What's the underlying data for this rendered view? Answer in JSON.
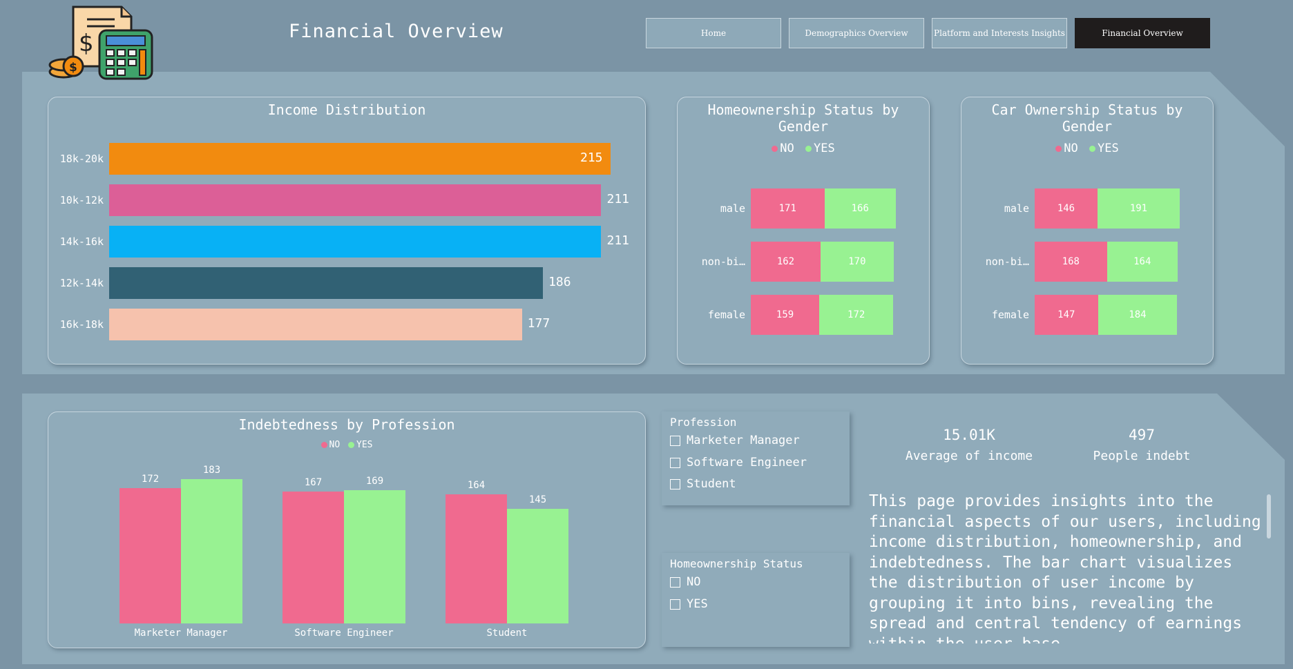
{
  "page": {
    "title": "Financial Overview"
  },
  "nav": [
    {
      "label": "Home",
      "active": false
    },
    {
      "label": "Demographics Overview",
      "active": false
    },
    {
      "label": "Platform and Interests Insights",
      "active": false
    },
    {
      "label": "Financial Overview",
      "active": true
    }
  ],
  "colors": {
    "no": "#f06a8f",
    "yes": "#98f292"
  },
  "income": {
    "title": "Income Distribution",
    "chart_data": {
      "type": "bar",
      "orientation": "horizontal",
      "categories": [
        "18k-20k",
        "10k-12k",
        "14k-16k",
        "12k-14k",
        "16k-18k"
      ],
      "values": [
        215,
        211,
        211,
        186,
        177
      ],
      "colors": [
        "#f28b0f",
        "#dc5f97",
        "#08b1f5",
        "#316174",
        "#f6c2ad"
      ],
      "title": "Income Distribution"
    }
  },
  "home": {
    "title": "Homeownership Status by Gender",
    "legend": [
      "NO",
      "YES"
    ],
    "chart_data": {
      "type": "bar",
      "orientation": "horizontal-stacked",
      "categories": [
        "male",
        "non-bi…",
        "female"
      ],
      "series": [
        {
          "name": "NO",
          "values": [
            171,
            162,
            159
          ]
        },
        {
          "name": "YES",
          "values": [
            166,
            170,
            172
          ]
        }
      ],
      "title": "Homeownership Status by Gender"
    }
  },
  "car": {
    "title": "Car Ownership Status by Gender",
    "legend": [
      "NO",
      "YES"
    ],
    "chart_data": {
      "type": "bar",
      "orientation": "horizontal-stacked",
      "categories": [
        "male",
        "non-bi…",
        "female"
      ],
      "series": [
        {
          "name": "NO",
          "values": [
            146,
            168,
            147
          ]
        },
        {
          "name": "YES",
          "values": [
            191,
            164,
            184
          ]
        }
      ],
      "title": "Car Ownership Status by Gender"
    }
  },
  "debt": {
    "title": "Indebtedness by Profession",
    "legend": [
      "NO",
      "YES"
    ],
    "chart_data": {
      "type": "bar",
      "orientation": "vertical-grouped",
      "categories": [
        "Marketer Manager",
        "Software Engineer",
        "Student"
      ],
      "series": [
        {
          "name": "NO",
          "values": [
            172,
            167,
            164
          ]
        },
        {
          "name": "YES",
          "values": [
            183,
            169,
            145
          ]
        }
      ],
      "title": "Indebtedness by Profession"
    }
  },
  "slicers": {
    "profession": {
      "title": "Profession",
      "options": [
        "Marketer Manager",
        "Software Engineer",
        "Student"
      ]
    },
    "home": {
      "title": "Homeownership Status",
      "options": [
        "NO",
        "YES"
      ]
    }
  },
  "kpis": [
    {
      "value": "15.01K",
      "label": "Average of income"
    },
    {
      "value": "497",
      "label": "People indebt"
    }
  ],
  "description": "This page provides insights into the financial aspects of our users, including income distribution, homeownership, and indebtedness. The bar chart visualizes the distribution of user income by grouping it into bins, revealing the spread and central tendency of earnings within the user base."
}
